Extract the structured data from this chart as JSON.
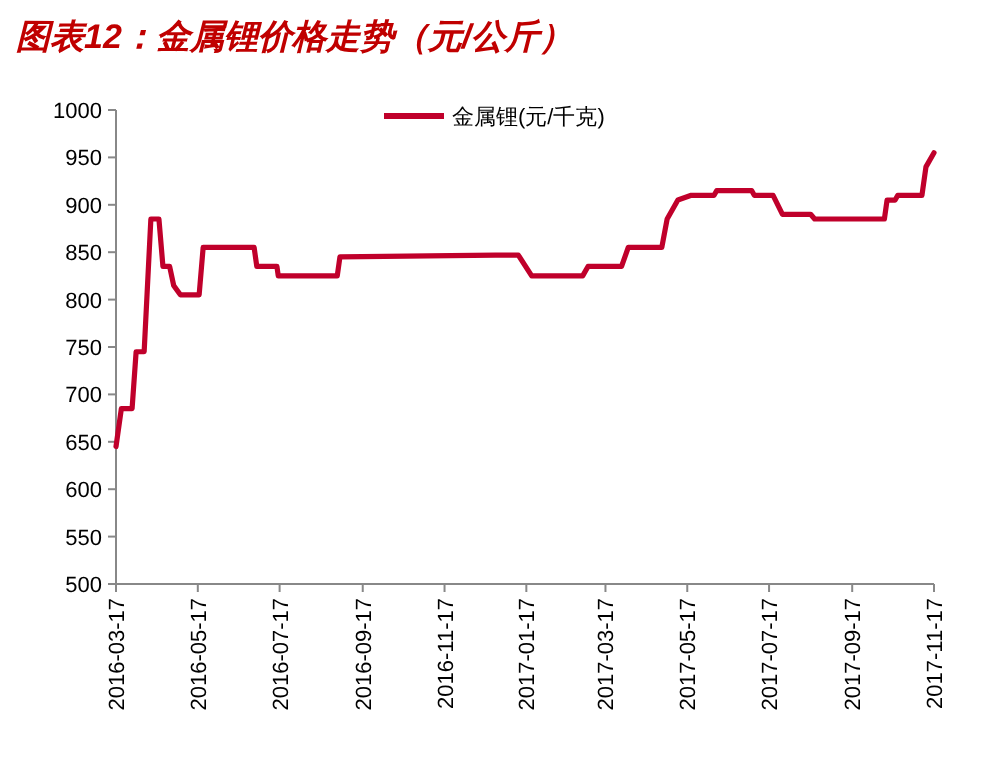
{
  "chart_data": {
    "type": "line",
    "title": "图表12：金属锂价格走势（元/公斤）",
    "xlim": [
      "2016-03-17",
      "2017-11-17"
    ],
    "xticks": [
      "2016-03-17",
      "2016-05-17",
      "2016-07-17",
      "2016-09-17",
      "2016-11-17",
      "2017-01-17",
      "2017-03-17",
      "2017-05-17",
      "2017-07-17",
      "2017-09-17",
      "2017-11-17"
    ],
    "ylim": [
      500,
      1000
    ],
    "yticks": [
      500,
      550,
      600,
      650,
      700,
      750,
      800,
      850,
      900,
      950,
      1000
    ],
    "grid": false,
    "legend": "top",
    "marker": "none",
    "line_style": "solid",
    "series": [
      {
        "name": "金属锂(元/千克)",
        "color": "#c0002b",
        "x": [
          "2016-03-17",
          "2016-03-21",
          "2016-03-29",
          "2016-04-01",
          "2016-04-07",
          "2016-04-12",
          "2016-04-18",
          "2016-04-21",
          "2016-04-26",
          "2016-04-29",
          "2016-05-04",
          "2016-05-18",
          "2016-05-21",
          "2016-06-28",
          "2016-06-30",
          "2016-07-15",
          "2016-07-16",
          "2016-08-29",
          "2016-08-31",
          "2016-12-25",
          "2017-01-11",
          "2017-01-21",
          "2017-02-28",
          "2017-03-04",
          "2017-03-29",
          "2017-04-03",
          "2017-04-28",
          "2017-05-02",
          "2017-05-10",
          "2017-05-20",
          "2017-06-06",
          "2017-06-08",
          "2017-07-04",
          "2017-07-06",
          "2017-07-20",
          "2017-07-27",
          "2017-08-17",
          "2017-08-20",
          "2017-10-11",
          "2017-10-13",
          "2017-10-19",
          "2017-10-21",
          "2017-11-08",
          "2017-11-11",
          "2017-11-17"
        ],
        "values": [
          645,
          685,
          685,
          745,
          745,
          885,
          885,
          835,
          835,
          815,
          805,
          805,
          855,
          855,
          835,
          835,
          825,
          825,
          845,
          847,
          847,
          825,
          825,
          835,
          835,
          855,
          855,
          885,
          905,
          910,
          910,
          915,
          915,
          910,
          910,
          890,
          890,
          885,
          885,
          905,
          905,
          910,
          910,
          940,
          955
        ]
      }
    ]
  }
}
